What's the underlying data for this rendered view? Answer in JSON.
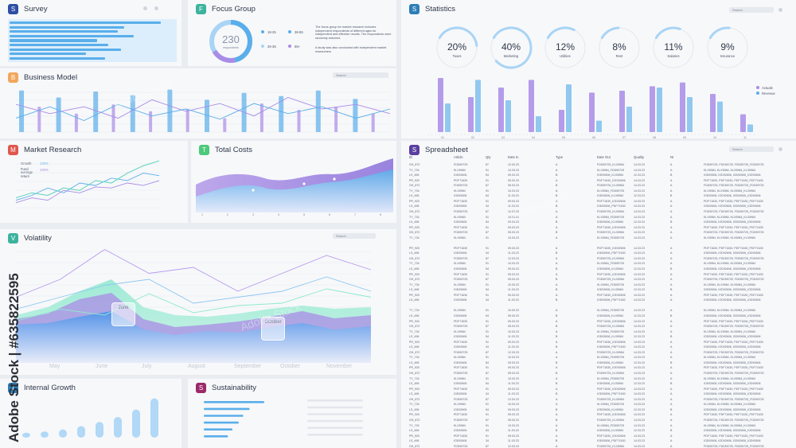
{
  "colors": {
    "blue": "#5aaeea",
    "lightBlue": "#a9d4f5",
    "purple": "#a98ce6",
    "teal": "#6ad6c0",
    "navy": "#2d4ea3",
    "orange": "#f2a65a",
    "red": "#e0574f",
    "green": "#4cc97a",
    "tealBadge": "#3db39e",
    "darkPurple": "#5a3fa0",
    "magenta": "#9c2a6a"
  },
  "survey": {
    "badge": "S",
    "title": "Survey",
    "bars": [
      0.95,
      0.72,
      0.68,
      0.78,
      0.55,
      0.62,
      0.7,
      0.48,
      0.6
    ]
  },
  "focus": {
    "badge": "F",
    "title": "Focus Group",
    "center_value": "230",
    "center_label": "respondents",
    "legend": [
      {
        "label": "18-25",
        "color": "#5aaeea"
      },
      {
        "label": "36-55",
        "color": "#5aaeea"
      },
      {
        "label": "26-35",
        "color": "#a9d4f5"
      },
      {
        "label": "55+",
        "color": "#a98ce6"
      }
    ],
    "text1": "The focus group for market research includes independent respondents of different ages for independent and effective results. The respondents were randomly selected.",
    "text2": "A study was also conducted with independent market researchers"
  },
  "statistics": {
    "badge": "S",
    "title": "Statistics",
    "search": "Search",
    "rings": [
      {
        "value": "20%",
        "label": "Taxes",
        "pct": 20
      },
      {
        "value": "40%",
        "label": "Marketing",
        "pct": 40
      },
      {
        "value": "12%",
        "label": "Utilities",
        "pct": 12
      },
      {
        "value": "8%",
        "label": "Rent",
        "pct": 8
      },
      {
        "value": "11%",
        "label": "Salaries",
        "pct": 11
      },
      {
        "value": "9%",
        "label": "Insurance",
        "pct": 9
      }
    ],
    "legend": [
      {
        "label": "Actuals",
        "color": "#a98ce6"
      },
      {
        "label": "Revenue",
        "color": "#5aaeea"
      }
    ],
    "bars_purple": [
      0.85,
      0.55,
      0.7,
      0.82,
      0.35,
      0.62,
      0.65,
      0.72,
      0.78,
      0.6,
      0.28
    ],
    "bars_blue": [
      0.45,
      0.82,
      0.5,
      0.25,
      0.75,
      0.18,
      0.4,
      0.7,
      0.55,
      0.48,
      0.12
    ],
    "xlabels": [
      "01",
      "02",
      "03",
      "04",
      "05",
      "06",
      "07",
      "08",
      "09",
      "10",
      "11"
    ]
  },
  "business": {
    "badge": "B",
    "title": "Business Model",
    "search": "Search",
    "bars": [
      0.9,
      0.55,
      0.75,
      0.4,
      0.88,
      0.6,
      0.8,
      0.45,
      0.92,
      0.5,
      0.7,
      0.3,
      0.85,
      0.62,
      0.78,
      0.48,
      0.9,
      0.55,
      0.72,
      0.4
    ],
    "line1": [
      0.6,
      0.4,
      0.55,
      0.3,
      0.7,
      0.45,
      0.62,
      0.35,
      0.75,
      0.5,
      0.6,
      0.4
    ],
    "line2": [
      0.3,
      0.55,
      0.25,
      0.6,
      0.35,
      0.5,
      0.28,
      0.62,
      0.4,
      0.55,
      0.3,
      0.5
    ]
  },
  "market": {
    "badge": "M",
    "title": "Market Research",
    "legend1": "Growth",
    "legend1_val": "100%",
    "legend2": "Fund average return",
    "legend2_val": "100%",
    "line1": [
      0.2,
      0.3,
      0.25,
      0.4,
      0.35,
      0.55,
      0.5,
      0.7,
      0.85,
      0.95
    ],
    "line2": [
      0.15,
      0.25,
      0.4,
      0.3,
      0.5,
      0.45,
      0.6,
      0.55,
      0.7,
      0.65
    ],
    "line3": [
      0.1,
      0.2,
      0.15,
      0.35,
      0.3,
      0.42,
      0.4,
      0.5,
      0.45,
      0.55
    ]
  },
  "totalcosts": {
    "badge": "T",
    "title": "Total Costs",
    "xlabels": [
      "1",
      "2",
      "3",
      "4",
      "5",
      "6",
      "7",
      "8"
    ]
  },
  "spreadsheet": {
    "badge": "S",
    "title": "Spreadsheet",
    "search": "Search",
    "headers": [
      "ID",
      "Article",
      "Qty",
      "Date In",
      "Type",
      "Date Out",
      "Quality",
      "Nr",
      ""
    ],
    "rows": [
      [
        "GH_872",
        "FDD59725",
        "87",
        "12.03.23",
        "A",
        "FDD59725_KLX5984",
        "14.03.23",
        "A",
        "FDD59725"
      ],
      [
        "TY_734",
        "KLX5984",
        "91",
        "10.03.23",
        "A",
        "KLX5984_FDD59725",
        "14.03.23",
        "A",
        "KLX5984"
      ],
      [
        "LS_498",
        "IOD92606",
        "54",
        "09.03.23",
        "B",
        "IOD92606_KLX5984",
        "12.03.23",
        "B",
        "IOD92606"
      ],
      [
        "PR_920",
        "PDF71630",
        "91",
        "09.03.23",
        "A",
        "PDF71630_IOD92606",
        "14.03.23",
        "A",
        "PDF71630"
      ],
      [
        "GH_872",
        "FDD59725",
        "87",
        "05.03.23",
        "B",
        "FDD59725_KLX5984",
        "14.03.23",
        "A",
        "FDD59725"
      ],
      [
        "TY_734",
        "KLX5984",
        "91",
        "10.03.23",
        "A",
        "KLX5984_FDD59725",
        "14.03.23",
        "A",
        "KLX5984"
      ],
      [
        "LS_498",
        "IOD92606",
        "54",
        "11.03.23",
        "B",
        "IOD92606_KLX5984",
        "12.03.23",
        "B",
        "IOD92606"
      ],
      [
        "PR_920",
        "PDF71630",
        "91",
        "09.03.23",
        "A",
        "PDF71630_IOD92606",
        "14.03.23",
        "A",
        "PDF71630"
      ],
      [
        "LS_498",
        "IOD92606",
        "34",
        "11.03.23",
        "B",
        "IOD92606_PDF71630",
        "14.03.23",
        "A",
        "IOD92606"
      ]
    ]
  },
  "volatility": {
    "badge": "V",
    "title": "Volatility",
    "search": "Search",
    "months": [
      "May",
      "June",
      "July",
      "August",
      "September",
      "October",
      "November"
    ],
    "card1": "June",
    "card2": "October",
    "top1": [
      0.55,
      0.7,
      0.95,
      0.75,
      0.8,
      0.6,
      0.75,
      0.9,
      0.78
    ],
    "top2": [
      0.45,
      0.55,
      0.65,
      0.7,
      0.5,
      0.55,
      0.6,
      0.72,
      0.6
    ],
    "top3": [
      0.35,
      0.45,
      0.4,
      0.58,
      0.42,
      0.48,
      0.5,
      0.62,
      0.55
    ]
  },
  "internal": {
    "badge": "I",
    "title": "Internal Growth",
    "bars": [
      0.12,
      0.15,
      0.2,
      0.28,
      0.38,
      0.5,
      0.68,
      0.95
    ]
  },
  "sustain": {
    "badge": "S",
    "title": "Sustainability",
    "bars": [
      0.95,
      0.72,
      0.62,
      0.55,
      0.45,
      0.38
    ]
  },
  "watermark": {
    "text": "Adobe Stock | #635822595",
    "stock": "Adobe Stock"
  }
}
